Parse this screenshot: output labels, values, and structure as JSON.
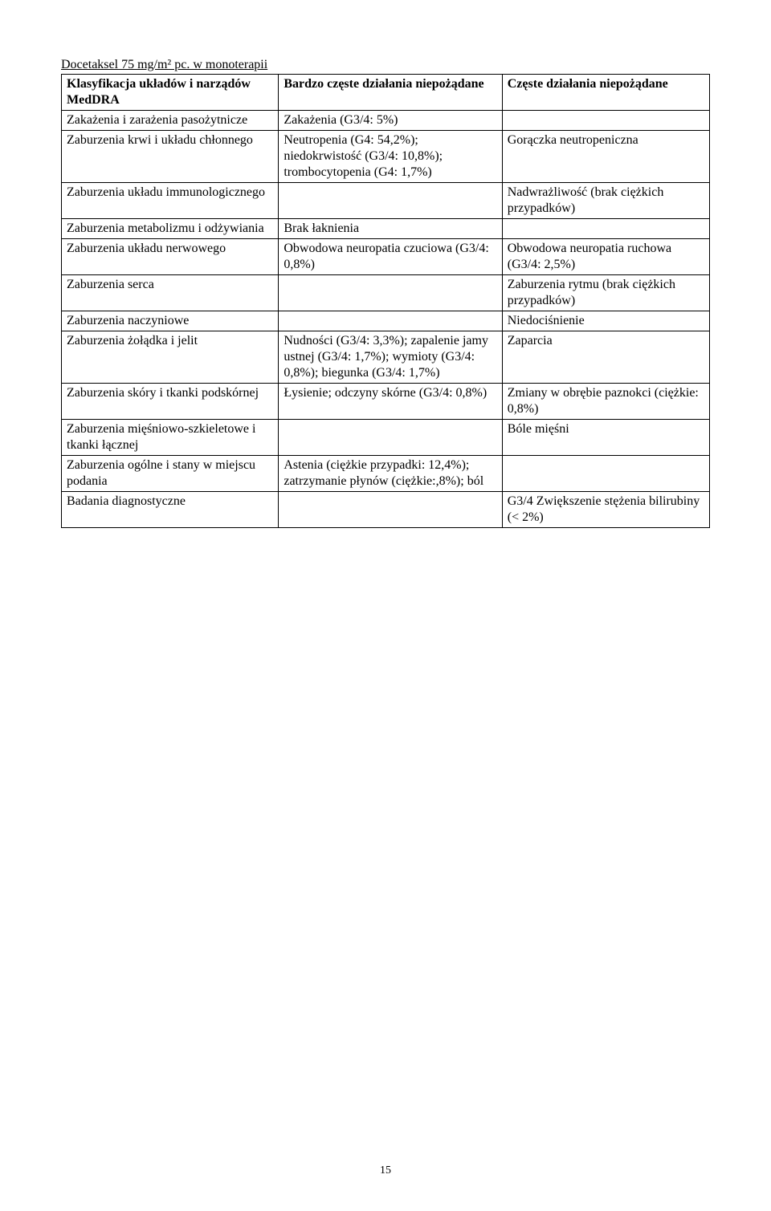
{
  "title": "Docetaksel 75 mg/m² pc. w monoterapii",
  "header": {
    "col0": "Klasyfikacja układów i narządów MedDRA",
    "col1": "Bardzo częste działania niepożądane",
    "col2": "Częste działania niepożądane"
  },
  "rows": [
    {
      "c0": "Zakażenia i zarażenia pasożytnicze",
      "c1": "Zakażenia (G3/4: 5%)",
      "c2": ""
    },
    {
      "c0": "Zaburzenia krwi i układu chłonnego",
      "c1": "Neutropenia (G4: 54,2%); niedokrwistość (G3/4: 10,8%); trombocytopenia (G4: 1,7%)",
      "c2": "Gorączka neutropeniczna"
    },
    {
      "c0": "Zaburzenia układu immunologicznego",
      "c1": "",
      "c2": "Nadwrażliwość (brak ciężkich przypadków)"
    },
    {
      "c0": "Zaburzenia metabolizmu i odżywiania",
      "c1": "Brak łaknienia",
      "c2": ""
    },
    {
      "c0": "Zaburzenia układu nerwowego",
      "c1": "Obwodowa neuropatia czuciowa (G3/4: 0,8%)",
      "c2": "Obwodowa neuropatia ruchowa (G3/4: 2,5%)"
    },
    {
      "c0": "Zaburzenia serca",
      "c1": "",
      "c2": "Zaburzenia rytmu (brak ciężkich przypadków)"
    },
    {
      "c0": "Zaburzenia naczyniowe",
      "c1": "",
      "c2": "Niedociśnienie"
    },
    {
      "c0": "Zaburzenia żołądka i jelit",
      "c1": "Nudności (G3/4: 3,3%); zapalenie jamy ustnej (G3/4: 1,7%); wymioty (G3/4: 0,8%); biegunka (G3/4: 1,7%)",
      "c2": "Zaparcia"
    },
    {
      "c0": "Zaburzenia skóry i tkanki podskórnej",
      "c1": "Łysienie; odczyny skórne (G3/4: 0,8%)",
      "c2": "Zmiany w obrębie paznokci (ciężkie: 0,8%)"
    },
    {
      "c0": "Zaburzenia mięśniowo-szkieletowe i tkanki łącznej",
      "c1": "",
      "c2": " Bóle mięśni"
    },
    {
      "c0": "Zaburzenia ogólne i stany w miejscu podania",
      "c1": "Astenia (ciężkie przypadki: 12,4%); zatrzymanie płynów (ciężkie:,8%); ból",
      "c2": ""
    },
    {
      "c0": "Badania diagnostyczne",
      "c1": "",
      "c2": "G3/4 Zwiększenie stężenia bilirubiny (< 2%)"
    }
  ],
  "page_number": "15"
}
